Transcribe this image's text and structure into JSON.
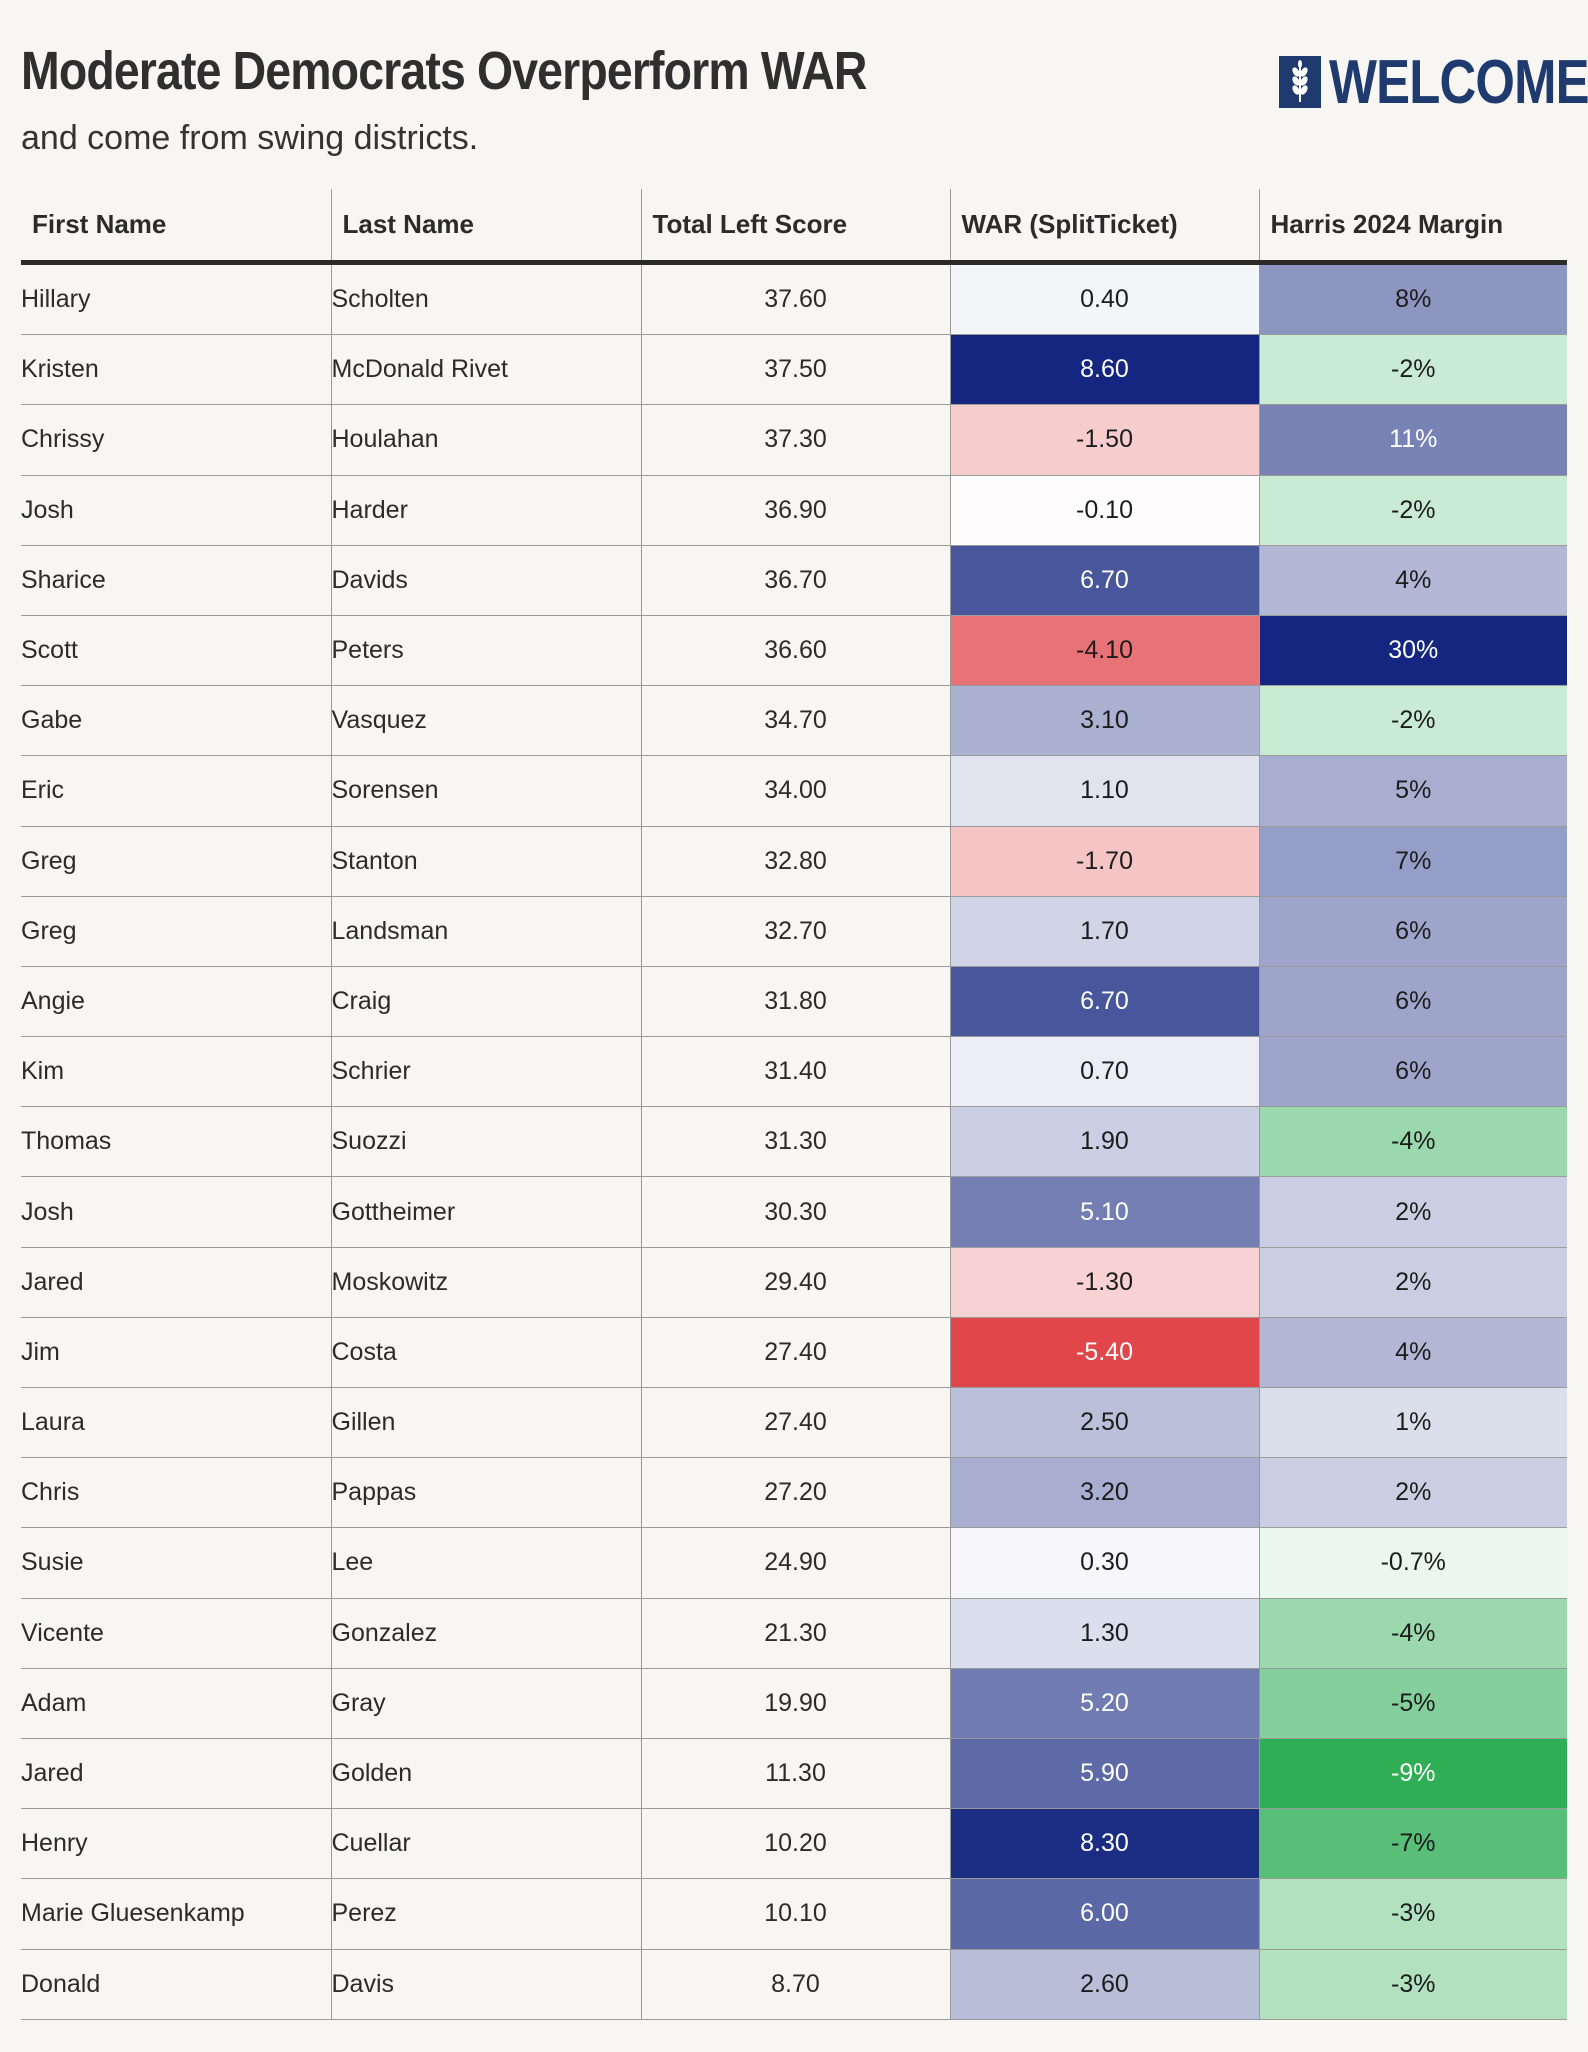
{
  "header": {
    "title": "Moderate Democrats Overperform WAR",
    "subtitle": "and come from swing districts.",
    "logo_text": "WELCOME"
  },
  "colors": {
    "background": "#f7f6f3",
    "brand": "#1f3a6e",
    "positive_war": "#14267f",
    "negative_war": "#e0464a",
    "green_strong": "#2fae55"
  },
  "chart_data": {
    "type": "table",
    "title": "Moderate Democrats Overperform WAR",
    "subtitle": "and come from swing districts.",
    "columns": [
      "First Name",
      "Last Name",
      "Total Left Score",
      "WAR (SplitTicket)",
      "Harris 2024 Margin"
    ],
    "rows": [
      {
        "first": "Hillary",
        "last": "Scholten",
        "score": "37.60",
        "war": "0.40",
        "margin": "8%"
      },
      {
        "first": "Kristen",
        "last": "McDonald Rivet",
        "score": "37.50",
        "war": "8.60",
        "margin": "-2%"
      },
      {
        "first": "Chrissy",
        "last": "Houlahan",
        "score": "37.30",
        "war": "-1.50",
        "margin": "11%"
      },
      {
        "first": "Josh",
        "last": "Harder",
        "score": "36.90",
        "war": "-0.10",
        "margin": "-2%"
      },
      {
        "first": "Sharice",
        "last": "Davids",
        "score": "36.70",
        "war": "6.70",
        "margin": "4%"
      },
      {
        "first": "Scott",
        "last": "Peters",
        "score": "36.60",
        "war": "-4.10",
        "margin": "30%"
      },
      {
        "first": "Gabe",
        "last": "Vasquez",
        "score": "34.70",
        "war": "3.10",
        "margin": "-2%"
      },
      {
        "first": "Eric",
        "last": "Sorensen",
        "score": "34.00",
        "war": "1.10",
        "margin": "5%"
      },
      {
        "first": "Greg",
        "last": "Stanton",
        "score": "32.80",
        "war": "-1.70",
        "margin": "7%"
      },
      {
        "first": "Greg",
        "last": "Landsman",
        "score": "32.70",
        "war": "1.70",
        "margin": "6%"
      },
      {
        "first": "Angie",
        "last": "Craig",
        "score": "31.80",
        "war": "6.70",
        "margin": "6%"
      },
      {
        "first": "Kim",
        "last": "Schrier",
        "score": "31.40",
        "war": "0.70",
        "margin": "6%"
      },
      {
        "first": "Thomas",
        "last": "Suozzi",
        "score": "31.30",
        "war": "1.90",
        "margin": "-4%"
      },
      {
        "first": "Josh",
        "last": "Gottheimer",
        "score": "30.30",
        "war": "5.10",
        "margin": "2%"
      },
      {
        "first": "Jared",
        "last": "Moskowitz",
        "score": "29.40",
        "war": "-1.30",
        "margin": "2%"
      },
      {
        "first": "Jim",
        "last": "Costa",
        "score": "27.40",
        "war": "-5.40",
        "margin": "4%"
      },
      {
        "first": "Laura",
        "last": "Gillen",
        "score": "27.40",
        "war": "2.50",
        "margin": "1%"
      },
      {
        "first": "Chris",
        "last": "Pappas",
        "score": "27.20",
        "war": "3.20",
        "margin": "2%"
      },
      {
        "first": "Susie",
        "last": "Lee",
        "score": "24.90",
        "war": "0.30",
        "margin": "-0.7%"
      },
      {
        "first": "Vicente",
        "last": "Gonzalez",
        "score": "21.30",
        "war": "1.30",
        "margin": "-4%"
      },
      {
        "first": "Adam",
        "last": "Gray",
        "score": "19.90",
        "war": "5.20",
        "margin": "-5%"
      },
      {
        "first": "Jared",
        "last": "Golden",
        "score": "11.30",
        "war": "5.90",
        "margin": "-9%"
      },
      {
        "first": "Henry",
        "last": "Cuellar",
        "score": "10.20",
        "war": "8.30",
        "margin": "-7%"
      },
      {
        "first": "Marie Gluesenkamp",
        "last": "Perez",
        "score": "10.10",
        "war": "6.00",
        "margin": "-3%"
      },
      {
        "first": "Donald",
        "last": "Davis",
        "score": "8.70",
        "war": "2.60",
        "margin": "-3%"
      }
    ]
  }
}
